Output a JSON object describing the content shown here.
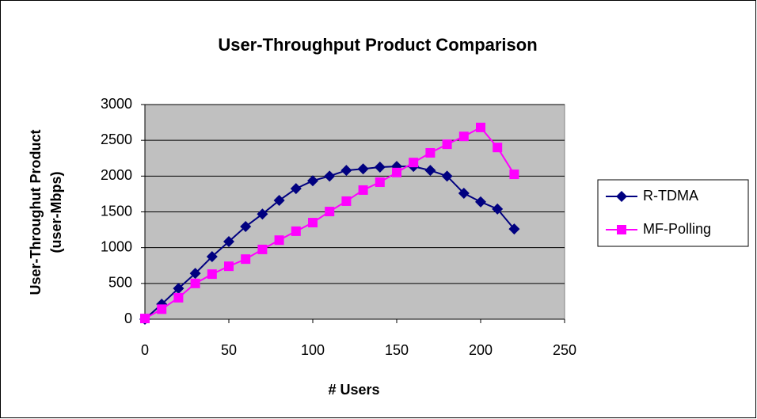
{
  "chart_data": {
    "type": "line",
    "title": "User-Throughput Product Comparison",
    "xlabel": "# Users",
    "ylabel": [
      "User-Throughut Product",
      "(user-Mbps)"
    ],
    "x": [
      0,
      10,
      20,
      30,
      40,
      50,
      60,
      70,
      80,
      90,
      100,
      110,
      120,
      130,
      140,
      150,
      160,
      170,
      180,
      190,
      200,
      210,
      220
    ],
    "series": [
      {
        "name": "R-TDMA",
        "color": "#000080",
        "marker": "diamond",
        "values": [
          0,
          210,
          430,
          640,
          875,
          1085,
          1295,
          1470,
          1660,
          1825,
          1935,
          2000,
          2080,
          2100,
          2125,
          2135,
          2135,
          2080,
          2000,
          1760,
          1640,
          1540,
          1260
        ]
      },
      {
        "name": "MF-Polling",
        "color": "#ff00ff",
        "marker": "square",
        "values": [
          10,
          140,
          300,
          500,
          630,
          740,
          840,
          975,
          1105,
          1230,
          1350,
          1505,
          1650,
          1805,
          1915,
          2050,
          2190,
          2325,
          2445,
          2555,
          2680,
          2400,
          2025
        ]
      }
    ],
    "xlim": [
      0,
      250
    ],
    "xticks": [
      0,
      50,
      100,
      150,
      200,
      250
    ],
    "ylim": [
      0,
      3000
    ],
    "yticks": [
      0,
      500,
      1000,
      1500,
      2000,
      2500,
      3000
    ],
    "grid": true,
    "legend": "right",
    "plot_background": "#c0c0c0"
  }
}
